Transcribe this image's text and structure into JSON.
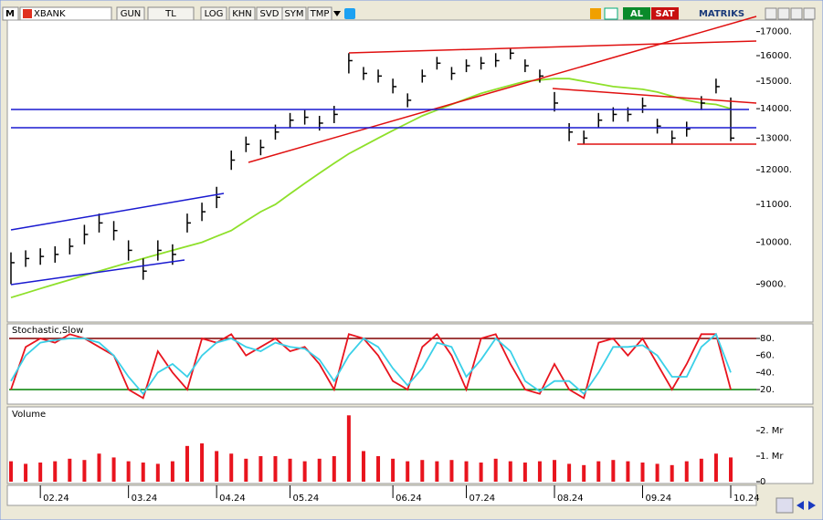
{
  "toolbar": {
    "logo": "M",
    "symbol": "XBANK",
    "buttons": [
      "GUN",
      "TL",
      "LOG",
      "KHN",
      "SVD",
      "SYM",
      "TMP"
    ],
    "buy": "AL",
    "sell": "SAT",
    "brand": "MATRIKS"
  },
  "chart_data": [
    {
      "type": "ohlc",
      "log_scale": true,
      "color": "#000000",
      "high": [
        9750,
        9800,
        9850,
        9900,
        10100,
        10450,
        10750,
        10550,
        10050,
        9600,
        10050,
        9950,
        10750,
        11050,
        11500,
        12600,
        13050,
        12950,
        13450,
        13850,
        13950,
        13750,
        14100,
        16100,
        15550,
        15450,
        15100,
        14550,
        15450,
        15950,
        15550,
        15850,
        15950,
        16100,
        16300,
        15850,
        15450,
        14600,
        13500,
        13250,
        13850,
        14050,
        14050,
        14400,
        13650,
        13250,
        13550,
        14450,
        15100,
        14400
      ],
      "low": [
        9000,
        9400,
        9450,
        9500,
        9700,
        9950,
        10250,
        10050,
        9550,
        9100,
        9550,
        9450,
        10250,
        10550,
        10900,
        12000,
        12550,
        12450,
        12950,
        13350,
        13450,
        13250,
        13500,
        15300,
        15050,
        14950,
        14550,
        14050,
        14950,
        15450,
        15050,
        15350,
        15450,
        15550,
        15850,
        15350,
        14950,
        13900,
        12900,
        12800,
        13350,
        13550,
        13550,
        13850,
        13150,
        12800,
        13050,
        13950,
        14550,
        12900
      ],
      "close": [
        9500,
        9600,
        9650,
        9700,
        9900,
        10200,
        10500,
        10300,
        9800,
        9300,
        9800,
        9700,
        10500,
        10800,
        11200,
        12300,
        12800,
        12700,
        13200,
        13600,
        13700,
        13500,
        13800,
        15800,
        15300,
        15200,
        14800,
        14300,
        15200,
        15700,
        15300,
        15600,
        15700,
        15800,
        16100,
        15600,
        15200,
        14200,
        13200,
        13000,
        13600,
        13800,
        13800,
        14100,
        13400,
        13000,
        13300,
        14200,
        14800,
        13000
      ],
      "series": [
        {
          "color": "#8ee02a",
          "values": [
            8700,
            8800,
            8900,
            9000,
            9100,
            9200,
            9300,
            9400,
            9500,
            9600,
            9700,
            9800,
            9900,
            10000,
            10150,
            10300,
            10550,
            10800,
            11000,
            11300,
            11600,
            11900,
            12200,
            12500,
            12750,
            13000,
            13250,
            13500,
            13750,
            13950,
            14150,
            14350,
            14550,
            14700,
            14850,
            15000,
            15050,
            15100,
            15100,
            15000,
            14900,
            14800,
            14750,
            14700,
            14600,
            14450,
            14300,
            14200,
            14150,
            14000
          ]
        }
      ],
      "ylim": [
        8200,
        17500
      ],
      "yticks": [
        {
          "value": 9000,
          "label": "9000."
        },
        {
          "value": 10000,
          "label": "10000."
        },
        {
          "value": 11000,
          "label": "11000."
        },
        {
          "value": 12000,
          "label": "12000."
        },
        {
          "value": 13000,
          "label": "13000."
        },
        {
          "value": 14000,
          "label": "14000."
        },
        {
          "value": 15000,
          "label": "15000."
        },
        {
          "value": 16000,
          "label": "16000."
        },
        {
          "value": 17000,
          "label": "17000."
        }
      ]
    },
    {
      "type": "line",
      "title": "Stochastic,Slow",
      "series": [
        {
          "color": "#e8141e",
          "values": [
            20,
            70,
            80,
            75,
            85,
            80,
            70,
            60,
            20,
            10,
            65,
            40,
            20,
            80,
            75,
            85,
            60,
            70,
            80,
            65,
            70,
            50,
            20,
            85,
            80,
            60,
            30,
            20,
            70,
            85,
            60,
            20,
            80,
            85,
            50,
            20,
            15,
            50,
            20,
            10,
            75,
            80,
            60,
            80,
            50,
            20,
            50,
            85,
            85,
            20
          ]
        },
        {
          "color": "#3ad0e8",
          "values": [
            30,
            60,
            75,
            78,
            80,
            80,
            75,
            60,
            35,
            15,
            40,
            50,
            35,
            60,
            75,
            80,
            70,
            65,
            75,
            70,
            68,
            55,
            30,
            60,
            80,
            70,
            45,
            25,
            45,
            75,
            70,
            35,
            55,
            80,
            65,
            30,
            18,
            30,
            30,
            15,
            40,
            70,
            70,
            72,
            60,
            35,
            35,
            70,
            85,
            40
          ]
        }
      ],
      "levels": [
        {
          "value": 80,
          "color": "#800000"
        },
        {
          "value": 20,
          "color": "#008000"
        }
      ],
      "ylim": [
        4,
        96
      ],
      "yticks": [
        {
          "value": 20,
          "label": "20."
        },
        {
          "value": 40,
          "label": "40."
        },
        {
          "value": 60,
          "label": "60."
        },
        {
          "value": 80,
          "label": "80."
        }
      ]
    },
    {
      "type": "bar",
      "title": "Volume",
      "color": "#e8141e",
      "categories": [
        null,
        null,
        "02.24",
        null,
        null,
        null,
        null,
        null,
        "03.24",
        null,
        null,
        null,
        null,
        null,
        "04.24",
        null,
        null,
        null,
        null,
        "05.24",
        null,
        null,
        null,
        null,
        null,
        null,
        "06.24",
        null,
        null,
        null,
        null,
        "07.24",
        null,
        null,
        null,
        null,
        null,
        "08.24",
        null,
        null,
        null,
        null,
        null,
        "09.24",
        null,
        null,
        null,
        null,
        null,
        "10.24"
      ],
      "values": [
        800000,
        700000,
        750000,
        800000,
        900000,
        850000,
        1100000,
        950000,
        800000,
        750000,
        700000,
        800000,
        1400000,
        1500000,
        1200000,
        1100000,
        900000,
        1000000,
        1000000,
        900000,
        800000,
        900000,
        1000000,
        2600000,
        1200000,
        1000000,
        900000,
        800000,
        850000,
        800000,
        850000,
        800000,
        750000,
        900000,
        800000,
        750000,
        800000,
        850000,
        700000,
        650000,
        800000,
        850000,
        800000,
        750000,
        700000,
        650000,
        800000,
        900000,
        1100000,
        950000
      ],
      "ylim": [
        0,
        2860000
      ],
      "yticks": [
        0,
        {
          "value": 1000000,
          "label": "1. Mr"
        },
        {
          "value": 2000000,
          "label": "2. Mr"
        }
      ]
    }
  ]
}
